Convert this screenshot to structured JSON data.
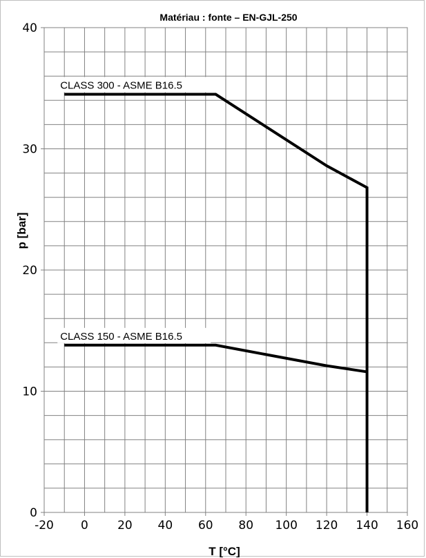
{
  "chart_data": {
    "type": "line",
    "title": "Matériau : fonte – EN-GJL-250",
    "xlabel": "T [°C]",
    "ylabel": "p [bar]",
    "xlim": [
      -20,
      160
    ],
    "ylim": [
      0,
      40
    ],
    "x_ticks": [
      -20,
      0,
      20,
      40,
      60,
      80,
      100,
      120,
      140,
      160
    ],
    "y_ticks": [
      0,
      10,
      20,
      30,
      40
    ],
    "x_minor_step": 10,
    "y_minor_step": 2,
    "grid": true,
    "series": [
      {
        "name": "CLASS 300 - ASME B16.5",
        "color": "#000000",
        "x": [
          -10,
          65,
          120,
          140,
          140
        ],
        "y": [
          34.5,
          34.5,
          28.6,
          26.8,
          0
        ]
      },
      {
        "name": "CLASS 150 - ASME B16.5",
        "color": "#000000",
        "x": [
          -10,
          65,
          120,
          140
        ],
        "y": [
          13.8,
          13.8,
          12.1,
          11.6
        ]
      }
    ]
  }
}
